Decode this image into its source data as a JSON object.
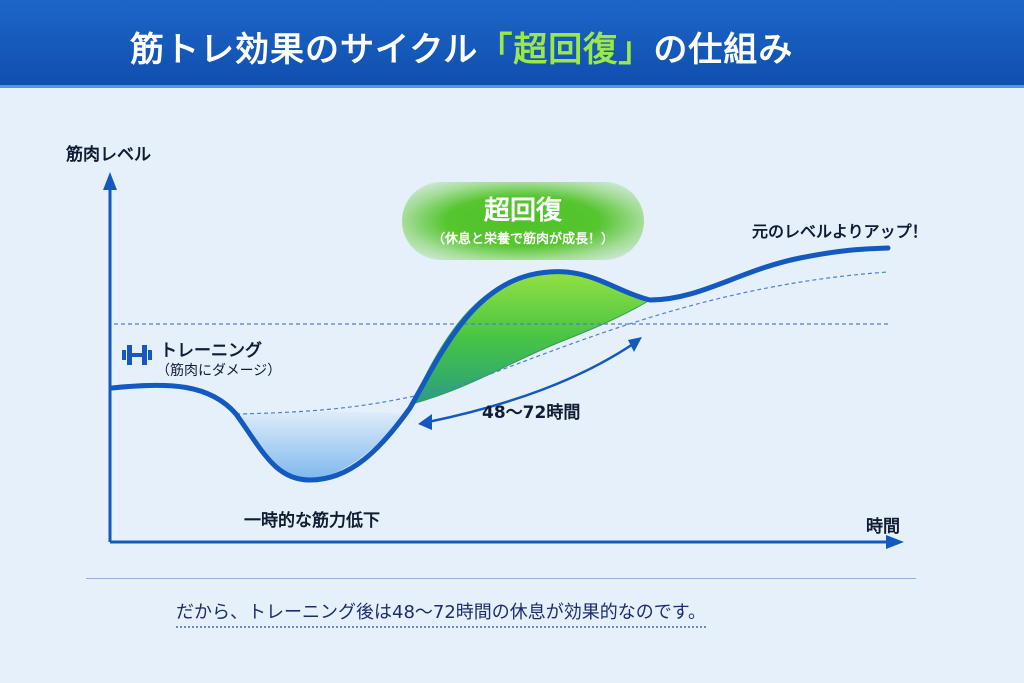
{
  "header": {
    "title_prefix": "筋トレ効果のサイクル",
    "title_highlight": "「超回復」",
    "title_suffix": "の仕組み"
  },
  "axes": {
    "y_label": "筋肉レベル",
    "x_label": "時間"
  },
  "annotations": {
    "training_title": "トレーニング",
    "training_sub": "（筋肉にダメージ）",
    "drop": "一時的な筋力低下",
    "supercompensation_title": "超回復",
    "supercompensation_sub": "（休息と栄養で筋肉が成長！）",
    "duration": "48〜72時間",
    "level_up": "元のレベルよりアップ！"
  },
  "footer": {
    "text": "だから、トレーニング後は48〜72時間の休息が効果的なのです。"
  },
  "colors": {
    "header_bg": "#1459bf",
    "title_highlight": "#9be84a",
    "curve": "#1459bf",
    "super_fill": "#3cc23a",
    "dip_fill": "#8cc0f0"
  }
}
